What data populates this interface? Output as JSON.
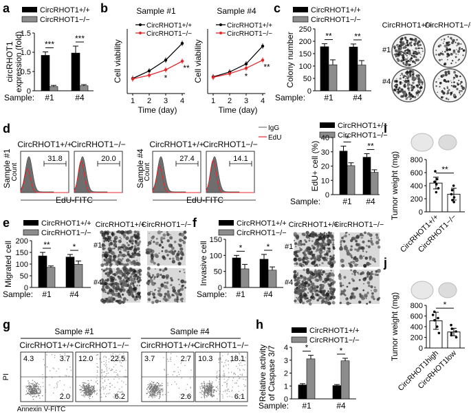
{
  "figure": {
    "colors": {
      "wt": "#000000",
      "ko": "#8c8c8c",
      "red": "#e8262a",
      "err": "#000000",
      "photo_dark": "#3a3a3a",
      "photo_light": "#d9d9d9",
      "hist_fill": "#6e6e6e"
    },
    "panel_letters": {
      "a": "a",
      "b": "b",
      "c": "c",
      "d": "d",
      "e": "e",
      "f": "f",
      "g": "g",
      "h": "h",
      "i": "i",
      "j": "j"
    },
    "legend": {
      "wt": "CircRHOT1+/+",
      "ko": "CircRHOT1−/−"
    },
    "sample_row": "Sample:",
    "samples": [
      "#1",
      "#4"
    ],
    "sample_headers": [
      "Sample #1",
      "Sample #4"
    ],
    "facs_cols": [
      "CircRHOT1+/+",
      "CircRHOT1−/−",
      "CircRHOT1+/+",
      "CircRHOT1−/−"
    ]
  },
  "chart_data": [
    {
      "panel": "a",
      "type": "bar",
      "ylabel_lines": [
        "circRHOT1",
        "expression (fold)"
      ],
      "ylim": [
        0,
        1.5
      ],
      "yticks": [
        "0",
        "0.5",
        "1.0",
        "1.5"
      ],
      "categories": [
        "#1",
        "#4"
      ],
      "series": [
        {
          "name": "CircRHOT1+/+",
          "values": [
            0.92,
            0.98
          ],
          "errors": [
            0.09,
            0.18
          ]
        },
        {
          "name": "CircRHOT1−/−",
          "values": [
            0.11,
            0.13
          ],
          "errors": [
            0.03,
            0.03
          ]
        }
      ],
      "significance": [
        "***",
        "***"
      ]
    },
    {
      "panel": "b1",
      "type": "line",
      "title": "Sample #1",
      "xlabel": "Time (day)",
      "ylabel": "Cell viability",
      "x": [
        1,
        2,
        3,
        4
      ],
      "ylim": [
        0,
        1.2
      ],
      "series": [
        {
          "name": "CircRHOT1+/+",
          "values": [
            0.28,
            0.42,
            0.62,
            0.93
          ]
        },
        {
          "name": "CircRHOT1−/−",
          "values": [
            0.27,
            0.34,
            0.44,
            0.6
          ]
        }
      ],
      "annotations": [
        "*",
        "**"
      ]
    },
    {
      "panel": "b2",
      "type": "line",
      "title": "Sample #4",
      "xlabel": "Time (day)",
      "ylabel": "Cell viability",
      "x": [
        1,
        2,
        3,
        4
      ],
      "ylim": [
        0,
        1.2
      ],
      "series": [
        {
          "name": "CircRHOT1+/+",
          "values": [
            0.31,
            0.4,
            0.55,
            0.88
          ]
        },
        {
          "name": "CircRHOT1−/−",
          "values": [
            0.3,
            0.37,
            0.47,
            0.62
          ]
        }
      ],
      "annotations": [
        "*",
        "**"
      ]
    },
    {
      "panel": "c",
      "type": "bar",
      "ylabel": "Colony number",
      "ylim": [
        0,
        250
      ],
      "yticks": [
        "0",
        "50",
        "100",
        "150",
        "200",
        "250"
      ],
      "categories": [
        "#1",
        "#4"
      ],
      "series": [
        {
          "name": "CircRHOT1+/+",
          "values": [
            178,
            177
          ],
          "errors": [
            12,
            12
          ]
        },
        {
          "name": "CircRHOT1−/−",
          "values": [
            105,
            104
          ],
          "errors": [
            20,
            18
          ]
        }
      ],
      "significance": [
        "**",
        "**"
      ]
    },
    {
      "panel": "d_bar",
      "type": "bar",
      "ylabel": "EdU+ cell (%)",
      "ylim": [
        0,
        40
      ],
      "yticks": [
        "0",
        "10",
        "20",
        "30",
        "40"
      ],
      "categories": [
        "#1",
        "#4"
      ],
      "series": [
        {
          "name": "CircRHOT1+/+",
          "values": [
            30.5,
            26.2
          ],
          "errors": [
            3.5,
            2.5
          ]
        },
        {
          "name": "CircRHOT1−/−",
          "values": [
            20.3,
            15.6
          ],
          "errors": [
            2.0,
            1.8
          ]
        }
      ],
      "significance": [
        "*",
        "**"
      ]
    },
    {
      "panel": "d_hist",
      "type": "histogram",
      "legend": [
        "IgG",
        "EdU"
      ],
      "xlabel": "EdU-FITC",
      "ylabel": "Count",
      "row_labels": [
        "Sample #1",
        "Sample #4"
      ],
      "titles": [
        "CircRHOT1+/+",
        "CircRHOT1−/−",
        "CircRHOT1+/+",
        "CircRHOT1−/−"
      ],
      "values": [
        "31.8",
        "20.0",
        "27.4",
        "14.1"
      ]
    },
    {
      "panel": "e",
      "type": "bar",
      "ylabel": "Migrated cell",
      "ylim": [
        0,
        200
      ],
      "yticks": [
        "0",
        "50",
        "100",
        "150",
        "200"
      ],
      "categories": [
        "#1",
        "#4"
      ],
      "series": [
        {
          "name": "CircRHOT1+/+",
          "values": [
            135,
            130
          ],
          "errors": [
            15,
            11
          ]
        },
        {
          "name": "CircRHOT1−/−",
          "values": [
            86,
            99
          ],
          "errors": [
            6,
            14
          ]
        }
      ],
      "significance": [
        "**",
        "*"
      ]
    },
    {
      "panel": "f",
      "type": "bar",
      "ylabel": "Invasive cell",
      "ylim": [
        0,
        150
      ],
      "yticks": [
        "0",
        "50",
        "100",
        "150"
      ],
      "categories": [
        "#1",
        "#4"
      ],
      "series": [
        {
          "name": "CircRHOT1+/+",
          "values": [
            92,
            88
          ],
          "errors": [
            8,
            15
          ]
        },
        {
          "name": "CircRHOT1−/−",
          "values": [
            58,
            54
          ],
          "errors": [
            14,
            10
          ]
        }
      ],
      "significance": [
        "*",
        "*"
      ]
    },
    {
      "panel": "g",
      "type": "scatter",
      "xlabel": "Annexin V-FITC",
      "ylabel": "PI",
      "quadrants": [
        {
          "ul": "4.3",
          "ur": "3.7",
          "lr": "2.0"
        },
        {
          "ul": "12.0",
          "ur": "22.5",
          "lr": "6.2"
        },
        {
          "ul": "3.7",
          "ur": "2.7",
          "lr": "2.6"
        },
        {
          "ul": "10.3",
          "ur": "18.1",
          "lr": "6.1"
        }
      ]
    },
    {
      "panel": "h",
      "type": "bar",
      "ylabel_lines": [
        "Relative activity",
        "of Caspase 3/7"
      ],
      "ylim": [
        0,
        4
      ],
      "yticks": [
        "0",
        "1",
        "2",
        "3",
        "4"
      ],
      "categories": [
        "#1",
        "#4"
      ],
      "series": [
        {
          "name": "CircRHOT1+/+",
          "values": [
            1.08,
            1.03
          ],
          "errors": [
            0.1,
            0.08
          ]
        },
        {
          "name": "CircRHOT1−/−",
          "values": [
            3.1,
            2.95
          ],
          "errors": [
            0.28,
            0.2
          ]
        }
      ],
      "significance": [
        "*",
        "*"
      ]
    },
    {
      "panel": "i",
      "type": "bar",
      "ylabel": "Tumor weight (mg)",
      "ylim": [
        0,
        800
      ],
      "yticks": [
        "0",
        "200",
        "400",
        "600",
        "800"
      ],
      "categories": [
        "CircRHOT1+/+",
        "CircRHOT1−/−"
      ],
      "values": [
        440,
        270
      ],
      "errors": [
        90,
        90
      ],
      "points": [
        [
          620,
          500,
          460,
          420,
          360,
          300
        ],
        [
          400,
          330,
          270,
          220,
          180,
          150
        ]
      ],
      "significance": "**"
    },
    {
      "panel": "j",
      "type": "bar",
      "ylabel": "Tumor weight (mg)",
      "ylim": [
        0,
        800
      ],
      "yticks": [
        "0",
        "200",
        "400",
        "600",
        "800"
      ],
      "categories": [
        "CircRHOT1high",
        "CircRHOT1low"
      ],
      "values": [
        510,
        300
      ],
      "errors": [
        160,
        70
      ],
      "points": [
        [
          680,
          620,
          560,
          520,
          400,
          280
        ],
        [
          430,
          360,
          310,
          280,
          240,
          200
        ]
      ],
      "significance": "*"
    }
  ]
}
